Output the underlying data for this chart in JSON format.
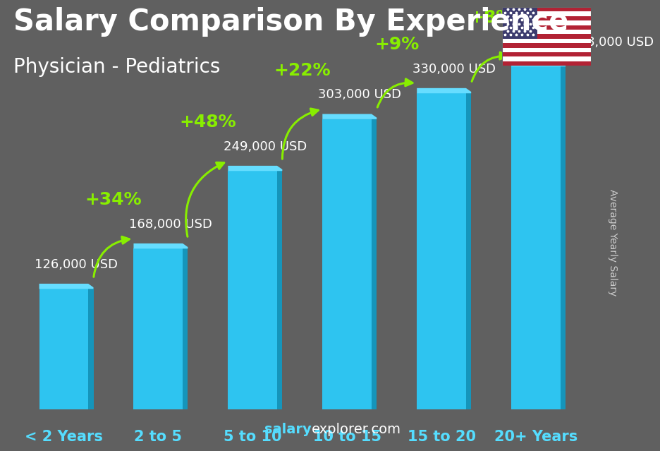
{
  "categories": [
    "< 2 Years",
    "2 to 5",
    "5 to 10",
    "10 to 15",
    "15 to 20",
    "20+ Years"
  ],
  "values": [
    126000,
    168000,
    249000,
    303000,
    330000,
    358000
  ],
  "labels": [
    "126,000 USD",
    "168,000 USD",
    "249,000 USD",
    "303,000 USD",
    "330,000 USD",
    "358,000 USD"
  ],
  "pct_changes": [
    "+34%",
    "+48%",
    "+22%",
    "+9%",
    "+8%"
  ],
  "bar_color_face": "#2ec4f0",
  "bar_color_side": "#1595bb",
  "bar_color_top": "#66ddff",
  "background_color": "#606060",
  "title": "Salary Comparison By Experience",
  "subtitle": "Physician - Pediatrics",
  "ylabel": "Average Yearly Salary",
  "title_fontsize": 30,
  "subtitle_fontsize": 20,
  "label_fontsize": 13,
  "pct_fontsize": 18,
  "cat_fontsize": 15,
  "arrow_color": "#88ee00",
  "text_color": "#ffffff",
  "label_color": "#ffffff",
  "cat_color": "#55ddff",
  "watermark_bold": "salary",
  "watermark_normal": "explorer.com",
  "ylabel_color": "#cccccc"
}
